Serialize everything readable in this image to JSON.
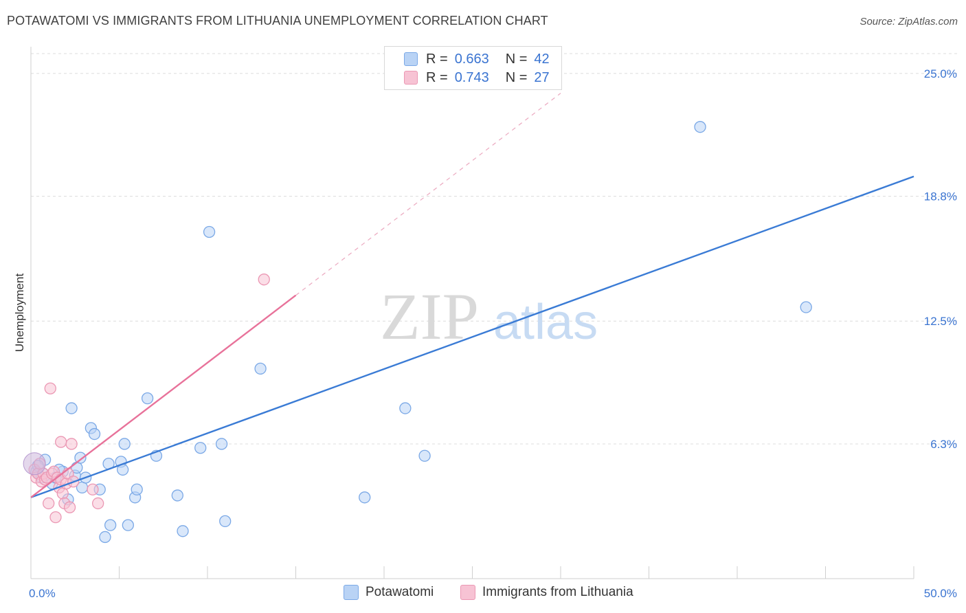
{
  "header": {
    "title": "POTAWATOMI VS IMMIGRANTS FROM LITHUANIA UNEMPLOYMENT CORRELATION CHART",
    "source": "Source: ZipAtlas.com"
  },
  "legend_top": {
    "rows": [
      {
        "r_label": "R =",
        "r_value": "0.663",
        "n_label": "N =",
        "n_value": "42"
      },
      {
        "r_label": "R =",
        "r_value": "0.743",
        "n_label": "N =",
        "n_value": "27"
      }
    ]
  },
  "legend_bottom": {
    "series_a": "Potawatomi",
    "series_b": "Immigrants from Lithuania"
  },
  "watermark": {
    "zip": "ZIP",
    "atlas": "atlas"
  },
  "colors": {
    "blue": "#3a7bd5",
    "blue_fill": "#b9d3f5",
    "pink": "#e8729a",
    "pink_fill": "#f7c3d4",
    "grid": "#dcdcdc",
    "tick_label": "#3a74d1"
  },
  "chart_data": {
    "type": "scatter",
    "title": "POTAWATOMI VS IMMIGRANTS FROM LITHUANIA UNEMPLOYMENT CORRELATION CHART",
    "xlabel": "",
    "ylabel": "Unemployment",
    "xlim": [
      0,
      50
    ],
    "ylim": [
      -0.5,
      26
    ],
    "x_tick_labels": [
      "0.0%",
      "50.0%"
    ],
    "y_ticks": [
      6.3,
      12.5,
      18.8,
      25.0
    ],
    "y_tick_labels": [
      "6.3%",
      "12.5%",
      "18.8%",
      "25.0%"
    ],
    "grid": true,
    "series": [
      {
        "name": "Potawatomi",
        "color": "#3a7bd5",
        "R": 0.663,
        "N": 42,
        "trend": {
          "x": [
            0,
            50
          ],
          "y": [
            3.6,
            19.8
          ]
        },
        "points": [
          {
            "x": 0.3,
            "y": 4.9
          },
          {
            "x": 0.6,
            "y": 4.6
          },
          {
            "x": 0.8,
            "y": 5.5
          },
          {
            "x": 1.2,
            "y": 4.3
          },
          {
            "x": 1.4,
            "y": 4.6
          },
          {
            "x": 1.8,
            "y": 4.9
          },
          {
            "x": 2.1,
            "y": 3.5
          },
          {
            "x": 2.3,
            "y": 8.1
          },
          {
            "x": 2.5,
            "y": 4.7
          },
          {
            "x": 2.6,
            "y": 5.1
          },
          {
            "x": 2.8,
            "y": 5.6
          },
          {
            "x": 2.9,
            "y": 4.1
          },
          {
            "x": 3.1,
            "y": 4.6
          },
          {
            "x": 3.4,
            "y": 7.1
          },
          {
            "x": 3.6,
            "y": 6.8
          },
          {
            "x": 3.9,
            "y": 4.0
          },
          {
            "x": 4.2,
            "y": 1.6
          },
          {
            "x": 4.4,
            "y": 5.3
          },
          {
            "x": 4.5,
            "y": 2.2
          },
          {
            "x": 5.1,
            "y": 5.4
          },
          {
            "x": 5.2,
            "y": 5.0
          },
          {
            "x": 5.3,
            "y": 6.3
          },
          {
            "x": 5.5,
            "y": 2.2
          },
          {
            "x": 5.9,
            "y": 3.6
          },
          {
            "x": 6.0,
            "y": 4.0
          },
          {
            "x": 6.6,
            "y": 8.6
          },
          {
            "x": 7.1,
            "y": 5.7
          },
          {
            "x": 8.3,
            "y": 3.7
          },
          {
            "x": 8.6,
            "y": 1.9
          },
          {
            "x": 9.6,
            "y": 6.1
          },
          {
            "x": 10.1,
            "y": 17.0
          },
          {
            "x": 10.8,
            "y": 6.3
          },
          {
            "x": 11.0,
            "y": 2.4
          },
          {
            "x": 13.0,
            "y": 10.1
          },
          {
            "x": 18.9,
            "y": 3.6
          },
          {
            "x": 21.2,
            "y": 8.1
          },
          {
            "x": 22.3,
            "y": 5.7
          },
          {
            "x": 37.9,
            "y": 22.3
          },
          {
            "x": 43.9,
            "y": 13.2
          },
          {
            "x": 0.7,
            "y": 4.8
          },
          {
            "x": 1.6,
            "y": 5.0
          },
          {
            "x": 0.4,
            "y": 5.2
          }
        ]
      },
      {
        "name": "Immigrants from Lithuania",
        "color": "#e8729a",
        "R": 0.743,
        "N": 27,
        "trend": {
          "x": [
            0,
            15
          ],
          "y": [
            3.6,
            13.8
          ]
        },
        "trend_dashed": {
          "x": [
            15,
            30
          ],
          "y": [
            13.8,
            24.0
          ]
        },
        "points": [
          {
            "x": 0.2,
            "y": 5.0
          },
          {
            "x": 0.3,
            "y": 4.6
          },
          {
            "x": 0.4,
            "y": 4.8
          },
          {
            "x": 0.5,
            "y": 5.3
          },
          {
            "x": 0.6,
            "y": 4.4
          },
          {
            "x": 0.7,
            "y": 4.8
          },
          {
            "x": 0.8,
            "y": 4.5
          },
          {
            "x": 0.9,
            "y": 4.6
          },
          {
            "x": 1.0,
            "y": 3.3
          },
          {
            "x": 1.1,
            "y": 9.1
          },
          {
            "x": 1.2,
            "y": 4.8
          },
          {
            "x": 1.3,
            "y": 4.9
          },
          {
            "x": 1.4,
            "y": 2.6
          },
          {
            "x": 1.5,
            "y": 4.6
          },
          {
            "x": 1.6,
            "y": 4.1
          },
          {
            "x": 1.7,
            "y": 4.5
          },
          {
            "x": 1.8,
            "y": 3.8
          },
          {
            "x": 1.9,
            "y": 3.3
          },
          {
            "x": 1.7,
            "y": 6.4
          },
          {
            "x": 2.0,
            "y": 4.3
          },
          {
            "x": 2.1,
            "y": 4.8
          },
          {
            "x": 2.2,
            "y": 3.1
          },
          {
            "x": 2.3,
            "y": 6.3
          },
          {
            "x": 2.4,
            "y": 4.4
          },
          {
            "x": 3.5,
            "y": 4.0
          },
          {
            "x": 3.8,
            "y": 3.3
          },
          {
            "x": 13.2,
            "y": 14.6
          }
        ]
      }
    ]
  }
}
